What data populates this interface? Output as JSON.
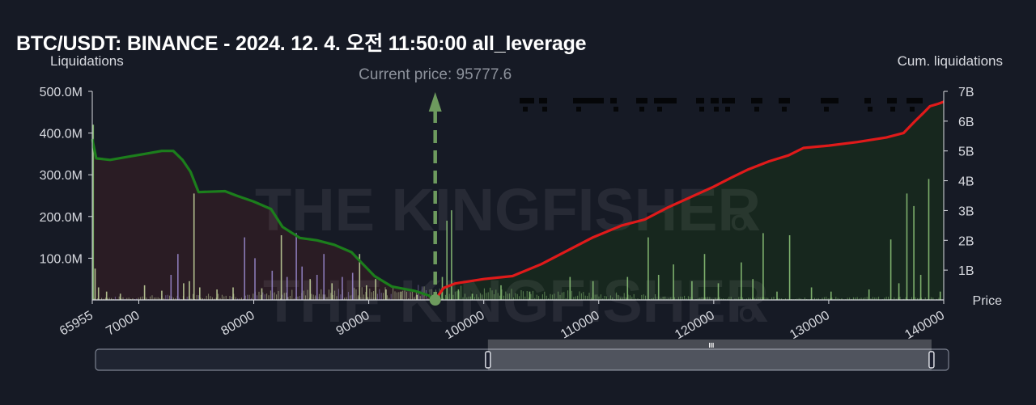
{
  "title": "BTC/USDT: BINANCE - 2024. 12. 4. 오전 11:50:00 all_leverage",
  "watermark": {
    "name": "THE KINGFISHER",
    "suffix": "IO"
  },
  "colors": {
    "background": "#161a25",
    "short_area": "#2a1c24",
    "long_area": "#17271e",
    "short_cum_line": "#1c7e1c",
    "long_cum_line": "#e01a1a",
    "bar_light": "#c8d8a0",
    "bar_purple": "#9b8ad0",
    "bar_green": "#8fc77a",
    "current_price_marker": "#6d9a5e"
  },
  "chart_data": {
    "type": "bar",
    "ylabel_left": "Liquidations",
    "ylabel_right": "Cum. liquidations",
    "xlabel": "Price",
    "current_price_label": "Current price: 95777.6",
    "current_price": 95777.6,
    "xlim": [
      65955,
      140000
    ],
    "ylim_left": [
      0,
      500000000
    ],
    "ylim_right": [
      0,
      7000000000
    ],
    "x_ticks": [
      {
        "value": 65955,
        "label": "65955"
      },
      {
        "value": 70000,
        "label": "70000"
      },
      {
        "value": 80000,
        "label": "80000"
      },
      {
        "value": 90000,
        "label": "90000"
      },
      {
        "value": 100000,
        "label": "100000"
      },
      {
        "value": 110000,
        "label": "110000"
      },
      {
        "value": 120000,
        "label": "120000"
      },
      {
        "value": 130000,
        "label": "130000"
      },
      {
        "value": 140000,
        "label": "140000"
      }
    ],
    "y_left_ticks": [
      {
        "value": 100000000,
        "label": "100.0M"
      },
      {
        "value": 200000000,
        "label": "200.0M"
      },
      {
        "value": 300000000,
        "label": "300.0M"
      },
      {
        "value": 400000000,
        "label": "400.0M"
      },
      {
        "value": 500000000,
        "label": "500.0M"
      }
    ],
    "y_right_ticks": [
      {
        "value": 1000000000,
        "label": "1B"
      },
      {
        "value": 2000000000,
        "label": "2B"
      },
      {
        "value": 3000000000,
        "label": "3B"
      },
      {
        "value": 4000000000,
        "label": "4B"
      },
      {
        "value": 5000000000,
        "label": "5B"
      },
      {
        "value": 6000000000,
        "label": "6B"
      },
      {
        "value": 7000000000,
        "label": "7B"
      }
    ],
    "bars_below_price": [
      {
        "x": 66050,
        "y": 420000000,
        "c": "bar_green"
      },
      {
        "x": 66200,
        "y": 75000000,
        "c": "bar_light"
      },
      {
        "x": 66500,
        "y": 30000000,
        "c": "bar_light"
      },
      {
        "x": 67200,
        "y": 20000000,
        "c": "bar_light"
      },
      {
        "x": 68400,
        "y": 15000000,
        "c": "bar_light"
      },
      {
        "x": 70500,
        "y": 35000000,
        "c": "bar_light"
      },
      {
        "x": 72000,
        "y": 22000000,
        "c": "bar_light"
      },
      {
        "x": 72800,
        "y": 60000000,
        "c": "bar_purple"
      },
      {
        "x": 73400,
        "y": 110000000,
        "c": "bar_purple"
      },
      {
        "x": 73900,
        "y": 40000000,
        "c": "bar_light"
      },
      {
        "x": 74400,
        "y": 45000000,
        "c": "bar_light"
      },
      {
        "x": 74800,
        "y": 255000000,
        "c": "bar_light"
      },
      {
        "x": 75300,
        "y": 30000000,
        "c": "bar_light"
      },
      {
        "x": 76800,
        "y": 25000000,
        "c": "bar_light"
      },
      {
        "x": 78200,
        "y": 30000000,
        "c": "bar_light"
      },
      {
        "x": 79200,
        "y": 150000000,
        "c": "bar_purple"
      },
      {
        "x": 80100,
        "y": 100000000,
        "c": "bar_purple"
      },
      {
        "x": 80700,
        "y": 28000000,
        "c": "bar_light"
      },
      {
        "x": 81600,
        "y": 70000000,
        "c": "bar_purple"
      },
      {
        "x": 82400,
        "y": 155000000,
        "c": "bar_light"
      },
      {
        "x": 82900,
        "y": 55000000,
        "c": "bar_purple"
      },
      {
        "x": 83700,
        "y": 160000000,
        "c": "bar_purple"
      },
      {
        "x": 84200,
        "y": 80000000,
        "c": "bar_purple"
      },
      {
        "x": 84900,
        "y": 50000000,
        "c": "bar_light"
      },
      {
        "x": 85500,
        "y": 60000000,
        "c": "bar_purple"
      },
      {
        "x": 86100,
        "y": 110000000,
        "c": "bar_purple"
      },
      {
        "x": 86800,
        "y": 40000000,
        "c": "bar_light"
      },
      {
        "x": 87700,
        "y": 55000000,
        "c": "bar_purple"
      },
      {
        "x": 88600,
        "y": 65000000,
        "c": "bar_purple"
      },
      {
        "x": 89200,
        "y": 110000000,
        "c": "bar_light"
      },
      {
        "x": 89800,
        "y": 35000000,
        "c": "bar_light"
      },
      {
        "x": 90600,
        "y": 50000000,
        "c": "bar_light"
      },
      {
        "x": 91500,
        "y": 25000000,
        "c": "bar_light"
      },
      {
        "x": 92800,
        "y": 20000000,
        "c": "bar_light"
      },
      {
        "x": 94200,
        "y": 12000000,
        "c": "bar_light"
      }
    ],
    "bars_above_price": [
      {
        "x": 96400,
        "y": 55000000,
        "c": "bar_green"
      },
      {
        "x": 96800,
        "y": 190000000,
        "c": "bar_green"
      },
      {
        "x": 97200,
        "y": 215000000,
        "c": "bar_green"
      },
      {
        "x": 97800,
        "y": 25000000,
        "c": "bar_green"
      },
      {
        "x": 99000,
        "y": 15000000,
        "c": "bar_green"
      },
      {
        "x": 101500,
        "y": 35000000,
        "c": "bar_green"
      },
      {
        "x": 104000,
        "y": 20000000,
        "c": "bar_green"
      },
      {
        "x": 107500,
        "y": 55000000,
        "c": "bar_green"
      },
      {
        "x": 109500,
        "y": 45000000,
        "c": "bar_green"
      },
      {
        "x": 112500,
        "y": 55000000,
        "c": "bar_green"
      },
      {
        "x": 114300,
        "y": 150000000,
        "c": "bar_green"
      },
      {
        "x": 115200,
        "y": 60000000,
        "c": "bar_green"
      },
      {
        "x": 116500,
        "y": 85000000,
        "c": "bar_green"
      },
      {
        "x": 118100,
        "y": 45000000,
        "c": "bar_green"
      },
      {
        "x": 119200,
        "y": 110000000,
        "c": "bar_green"
      },
      {
        "x": 120400,
        "y": 40000000,
        "c": "bar_green"
      },
      {
        "x": 122400,
        "y": 90000000,
        "c": "bar_green"
      },
      {
        "x": 123400,
        "y": 50000000,
        "c": "bar_green"
      },
      {
        "x": 124300,
        "y": 160000000,
        "c": "bar_green"
      },
      {
        "x": 125500,
        "y": 20000000,
        "c": "bar_green"
      },
      {
        "x": 126600,
        "y": 155000000,
        "c": "bar_green"
      },
      {
        "x": 128500,
        "y": 30000000,
        "c": "bar_green"
      },
      {
        "x": 130200,
        "y": 20000000,
        "c": "bar_green"
      },
      {
        "x": 133500,
        "y": 25000000,
        "c": "bar_green"
      },
      {
        "x": 135400,
        "y": 145000000,
        "c": "bar_green"
      },
      {
        "x": 136100,
        "y": 40000000,
        "c": "bar_green"
      },
      {
        "x": 136800,
        "y": 255000000,
        "c": "bar_green"
      },
      {
        "x": 137400,
        "y": 225000000,
        "c": "bar_green"
      },
      {
        "x": 138000,
        "y": 60000000,
        "c": "bar_green"
      },
      {
        "x": 138700,
        "y": 290000000,
        "c": "bar_green"
      },
      {
        "x": 139700,
        "y": 20000000,
        "c": "bar_green"
      }
    ],
    "short_cum_line": [
      [
        65955,
        5400000000
      ],
      [
        66300,
        4750000000
      ],
      [
        67500,
        4700000000
      ],
      [
        69000,
        4800000000
      ],
      [
        70500,
        4900000000
      ],
      [
        72000,
        5000000000
      ],
      [
        73000,
        5000000000
      ],
      [
        73800,
        4700000000
      ],
      [
        74500,
        4300000000
      ],
      [
        75200,
        3620000000
      ],
      [
        77500,
        3650000000
      ],
      [
        78500,
        3500000000
      ],
      [
        80000,
        3300000000
      ],
      [
        81500,
        3050000000
      ],
      [
        82500,
        2450000000
      ],
      [
        84000,
        2080000000
      ],
      [
        85500,
        2000000000
      ],
      [
        87000,
        1850000000
      ],
      [
        88500,
        1600000000
      ],
      [
        89500,
        1200000000
      ],
      [
        90500,
        800000000
      ],
      [
        92000,
        450000000
      ],
      [
        94000,
        300000000
      ],
      [
        95200,
        150000000
      ],
      [
        95777.6,
        0
      ]
    ],
    "long_cum_line": [
      [
        95777.6,
        0
      ],
      [
        96500,
        400000000
      ],
      [
        97500,
        550000000
      ],
      [
        100000,
        700000000
      ],
      [
        102500,
        800000000
      ],
      [
        105000,
        1200000000
      ],
      [
        107500,
        1700000000
      ],
      [
        109500,
        2100000000
      ],
      [
        112000,
        2500000000
      ],
      [
        114000,
        2700000000
      ],
      [
        116000,
        3100000000
      ],
      [
        118000,
        3450000000
      ],
      [
        120000,
        3800000000
      ],
      [
        121500,
        4100000000
      ],
      [
        123000,
        4380000000
      ],
      [
        124800,
        4650000000
      ],
      [
        126500,
        4850000000
      ],
      [
        127800,
        5100000000
      ],
      [
        130000,
        5180000000
      ],
      [
        132500,
        5300000000
      ],
      [
        135000,
        5450000000
      ],
      [
        136500,
        5600000000
      ],
      [
        137500,
        6000000000
      ],
      [
        138300,
        6300000000
      ],
      [
        138800,
        6500000000
      ],
      [
        139500,
        6580000000
      ],
      [
        140000,
        6650000000
      ]
    ]
  },
  "zoom_slider": {
    "grip_label": "III",
    "window_start_fraction": 0.46,
    "window_end_fraction": 0.98
  }
}
